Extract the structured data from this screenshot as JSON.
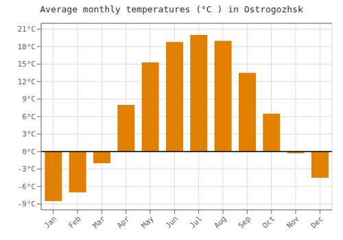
{
  "chart_data": {
    "type": "bar",
    "title": "Average monthly temperatures (°C ) in Ostrogozhsk",
    "categories": [
      "Jan",
      "Feb",
      "Mar",
      "Apr",
      "May",
      "Jun",
      "Jul",
      "Aug",
      "Sep",
      "Oct",
      "Nov",
      "Dec"
    ],
    "values": [
      -8.5,
      -7.0,
      -2.0,
      8.0,
      15.3,
      18.8,
      20.0,
      19.0,
      13.5,
      6.5,
      -0.3,
      -4.5
    ],
    "color": "#E08000",
    "ylim": [
      -10,
      22
    ],
    "yticks": [
      {
        "value": -9,
        "label": "-9°C"
      },
      {
        "value": -6,
        "label": "-6°C"
      },
      {
        "value": -3,
        "label": "-3°C"
      },
      {
        "value": 0,
        "label": "0°C"
      },
      {
        "value": 3,
        "label": "3°C"
      },
      {
        "value": 6,
        "label": "6°C"
      },
      {
        "value": 9,
        "label": "9°C"
      },
      {
        "value": 12,
        "label": "12°C"
      },
      {
        "value": 15,
        "label": "15°C"
      },
      {
        "value": 18,
        "label": "18°C"
      },
      {
        "value": 21,
        "label": "21°C"
      }
    ],
    "grid": true
  }
}
